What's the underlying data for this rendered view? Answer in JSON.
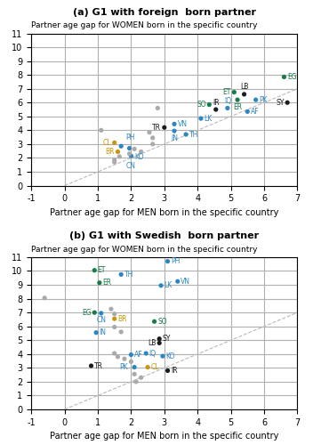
{
  "chart_data": [
    {
      "type": "scatter",
      "title": "(a) G1 with foreign  born partner",
      "xlabel": "Partner age gap for MEN born in the specific country",
      "ylabel": "Partner age gap for WOMEN born in the specific country",
      "x": [
        6.6,
        5.1,
        5.4,
        5.75,
        5.2,
        4.35,
        4.9,
        4.55,
        5.5,
        6.7,
        4.1,
        3.3,
        3.0,
        3.3,
        3.65,
        1.5,
        1.7,
        1.95,
        1.6,
        2.0,
        2.8,
        2.55,
        2.65,
        2.65,
        2.1,
        2.3,
        1.95,
        1.65,
        1.5,
        1.5,
        1.1
      ],
      "values": [
        7.85,
        6.75,
        6.6,
        6.2,
        6.2,
        5.85,
        5.6,
        5.5,
        5.35,
        6.0,
        4.85,
        4.45,
        4.2,
        3.95,
        3.7,
        3.1,
        2.85,
        2.7,
        2.45,
        2.15,
        5.6,
        3.85,
        3.45,
        3.0,
        2.65,
        2.45,
        2.3,
        2.1,
        1.85,
        1.7,
        4.0
      ],
      "colors": [
        "#1a7a4a",
        "#1a7a4a",
        "#1c1c1c",
        "#2e86c1",
        "#1a7a4a",
        "#1a7a4a",
        "#2e86c1",
        "#1c1c1c",
        "#2e86c1",
        "#1c1c1c",
        "#2e86c1",
        "#2e86c1",
        "#1c1c1c",
        "#2e86c1",
        "#2e86c1",
        "#c8960c",
        "#2e86c1",
        "#2e86c1",
        "#c8960c",
        "#2e86c1",
        "#aaaaaa",
        "#aaaaaa",
        "#aaaaaa",
        "#aaaaaa",
        "#aaaaaa",
        "#aaaaaa",
        "#aaaaaa",
        "#aaaaaa",
        "#aaaaaa",
        "#aaaaaa",
        "#aaaaaa"
      ],
      "labels": [
        "EG",
        "ET",
        "LB",
        "PK",
        "ER",
        "SO",
        "IQ",
        "IR",
        "AF",
        "SY",
        "LK",
        "VN",
        "TR",
        "IN",
        "TH",
        "CL",
        "PH",
        "KO",
        "BR",
        "CN",
        null,
        null,
        null,
        null,
        null,
        null,
        null,
        null,
        null,
        null,
        null
      ],
      "xlim": [
        -1,
        7
      ],
      "ylim": [
        0,
        11
      ],
      "xticks": [
        -1,
        0,
        1,
        2,
        3,
        4,
        5,
        6,
        7
      ],
      "yticks": [
        0,
        1,
        2,
        3,
        4,
        5,
        6,
        7,
        8,
        9,
        10,
        11
      ],
      "grid": true,
      "reference_line": {
        "slope": 1,
        "intercept": 0,
        "line_style": "dashed",
        "color": "#bbbbbb"
      }
    },
    {
      "type": "scatter",
      "title": "(b) G1 with Swedish  born partner",
      "xlabel": "Partner age gap for MEN born in the specific country",
      "ylabel": "Partner age gap for WOMEN born in the specific country",
      "x": [
        3.1,
        0.9,
        1.7,
        1.05,
        3.4,
        2.9,
        0.9,
        1.1,
        1.5,
        2.7,
        0.95,
        2.85,
        2.85,
        2.0,
        2.45,
        2.95,
        0.8,
        2.1,
        2.5,
        3.1,
        -0.6,
        1.4,
        1.5,
        1.5,
        1.7,
        1.5,
        1.6,
        1.8,
        2.0,
        2.1,
        2.3,
        2.15
      ],
      "values": [
        10.7,
        10.05,
        9.75,
        9.15,
        9.25,
        8.95,
        7.0,
        6.95,
        6.55,
        6.35,
        5.55,
        5.1,
        4.8,
        3.95,
        4.05,
        3.85,
        3.15,
        3.05,
        3.05,
        2.8,
        8.05,
        7.25,
        6.9,
        5.95,
        5.6,
        4.05,
        3.8,
        3.65,
        3.45,
        2.55,
        2.3,
        2.0
      ],
      "colors": [
        "#2e86c1",
        "#1a7a4a",
        "#2e86c1",
        "#1a7a4a",
        "#2e86c1",
        "#2e86c1",
        "#1a7a4a",
        "#2e86c1",
        "#c8960c",
        "#1a7a4a",
        "#2e86c1",
        "#1c1c1c",
        "#1c1c1c",
        "#2e86c1",
        "#2e86c1",
        "#2e86c1",
        "#1c1c1c",
        "#2e86c1",
        "#c8960c",
        "#1c1c1c",
        "#aaaaaa",
        "#aaaaaa",
        "#aaaaaa",
        "#aaaaaa",
        "#aaaaaa",
        "#aaaaaa",
        "#aaaaaa",
        "#aaaaaa",
        "#aaaaaa",
        "#aaaaaa",
        "#aaaaaa",
        "#aaaaaa"
      ],
      "labels": [
        "PH",
        "ET",
        "TH",
        "ER",
        "VN",
        "LK",
        "EG",
        "CN",
        "BR",
        "SO",
        "IN",
        "SY",
        "LB",
        "AF",
        "IQ",
        "KO",
        "TR",
        "PK",
        "CL",
        "IR",
        null,
        null,
        null,
        null,
        null,
        null,
        null,
        null,
        null,
        null,
        null,
        null
      ],
      "xlim": [
        -1,
        7
      ],
      "ylim": [
        0,
        11
      ],
      "xticks": [
        -1,
        0,
        1,
        2,
        3,
        4,
        5,
        6,
        7
      ],
      "yticks": [
        0,
        1,
        2,
        3,
        4,
        5,
        6,
        7,
        8,
        9,
        10,
        11
      ],
      "grid": true,
      "reference_line": {
        "slope": 1,
        "intercept": 0,
        "line_style": "dashed",
        "color": "#bbbbbb"
      }
    }
  ]
}
